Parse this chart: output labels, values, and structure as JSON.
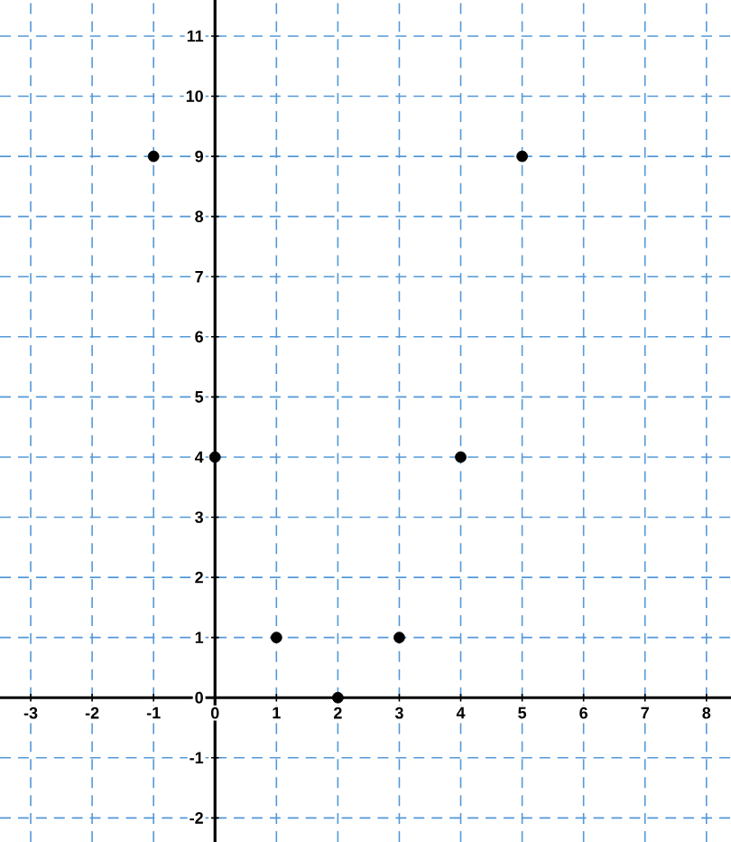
{
  "chart_data": {
    "type": "scatter",
    "x": [
      -1,
      0,
      1,
      2,
      3,
      4,
      5
    ],
    "series": [
      {
        "color": "#000000",
        "values": [
          9,
          4,
          1,
          0,
          1,
          4,
          9
        ]
      }
    ],
    "xlim": [
      -3.5,
      8.4
    ],
    "ylim": [
      -2.4,
      11.6
    ],
    "xticks": [
      -3,
      -2,
      -1,
      0,
      1,
      2,
      3,
      4,
      5,
      6,
      7,
      8
    ],
    "yticks": [
      -2,
      -1,
      0,
      1,
      2,
      3,
      4,
      5,
      6,
      7,
      8,
      9,
      10,
      11
    ],
    "grid": true
  }
}
